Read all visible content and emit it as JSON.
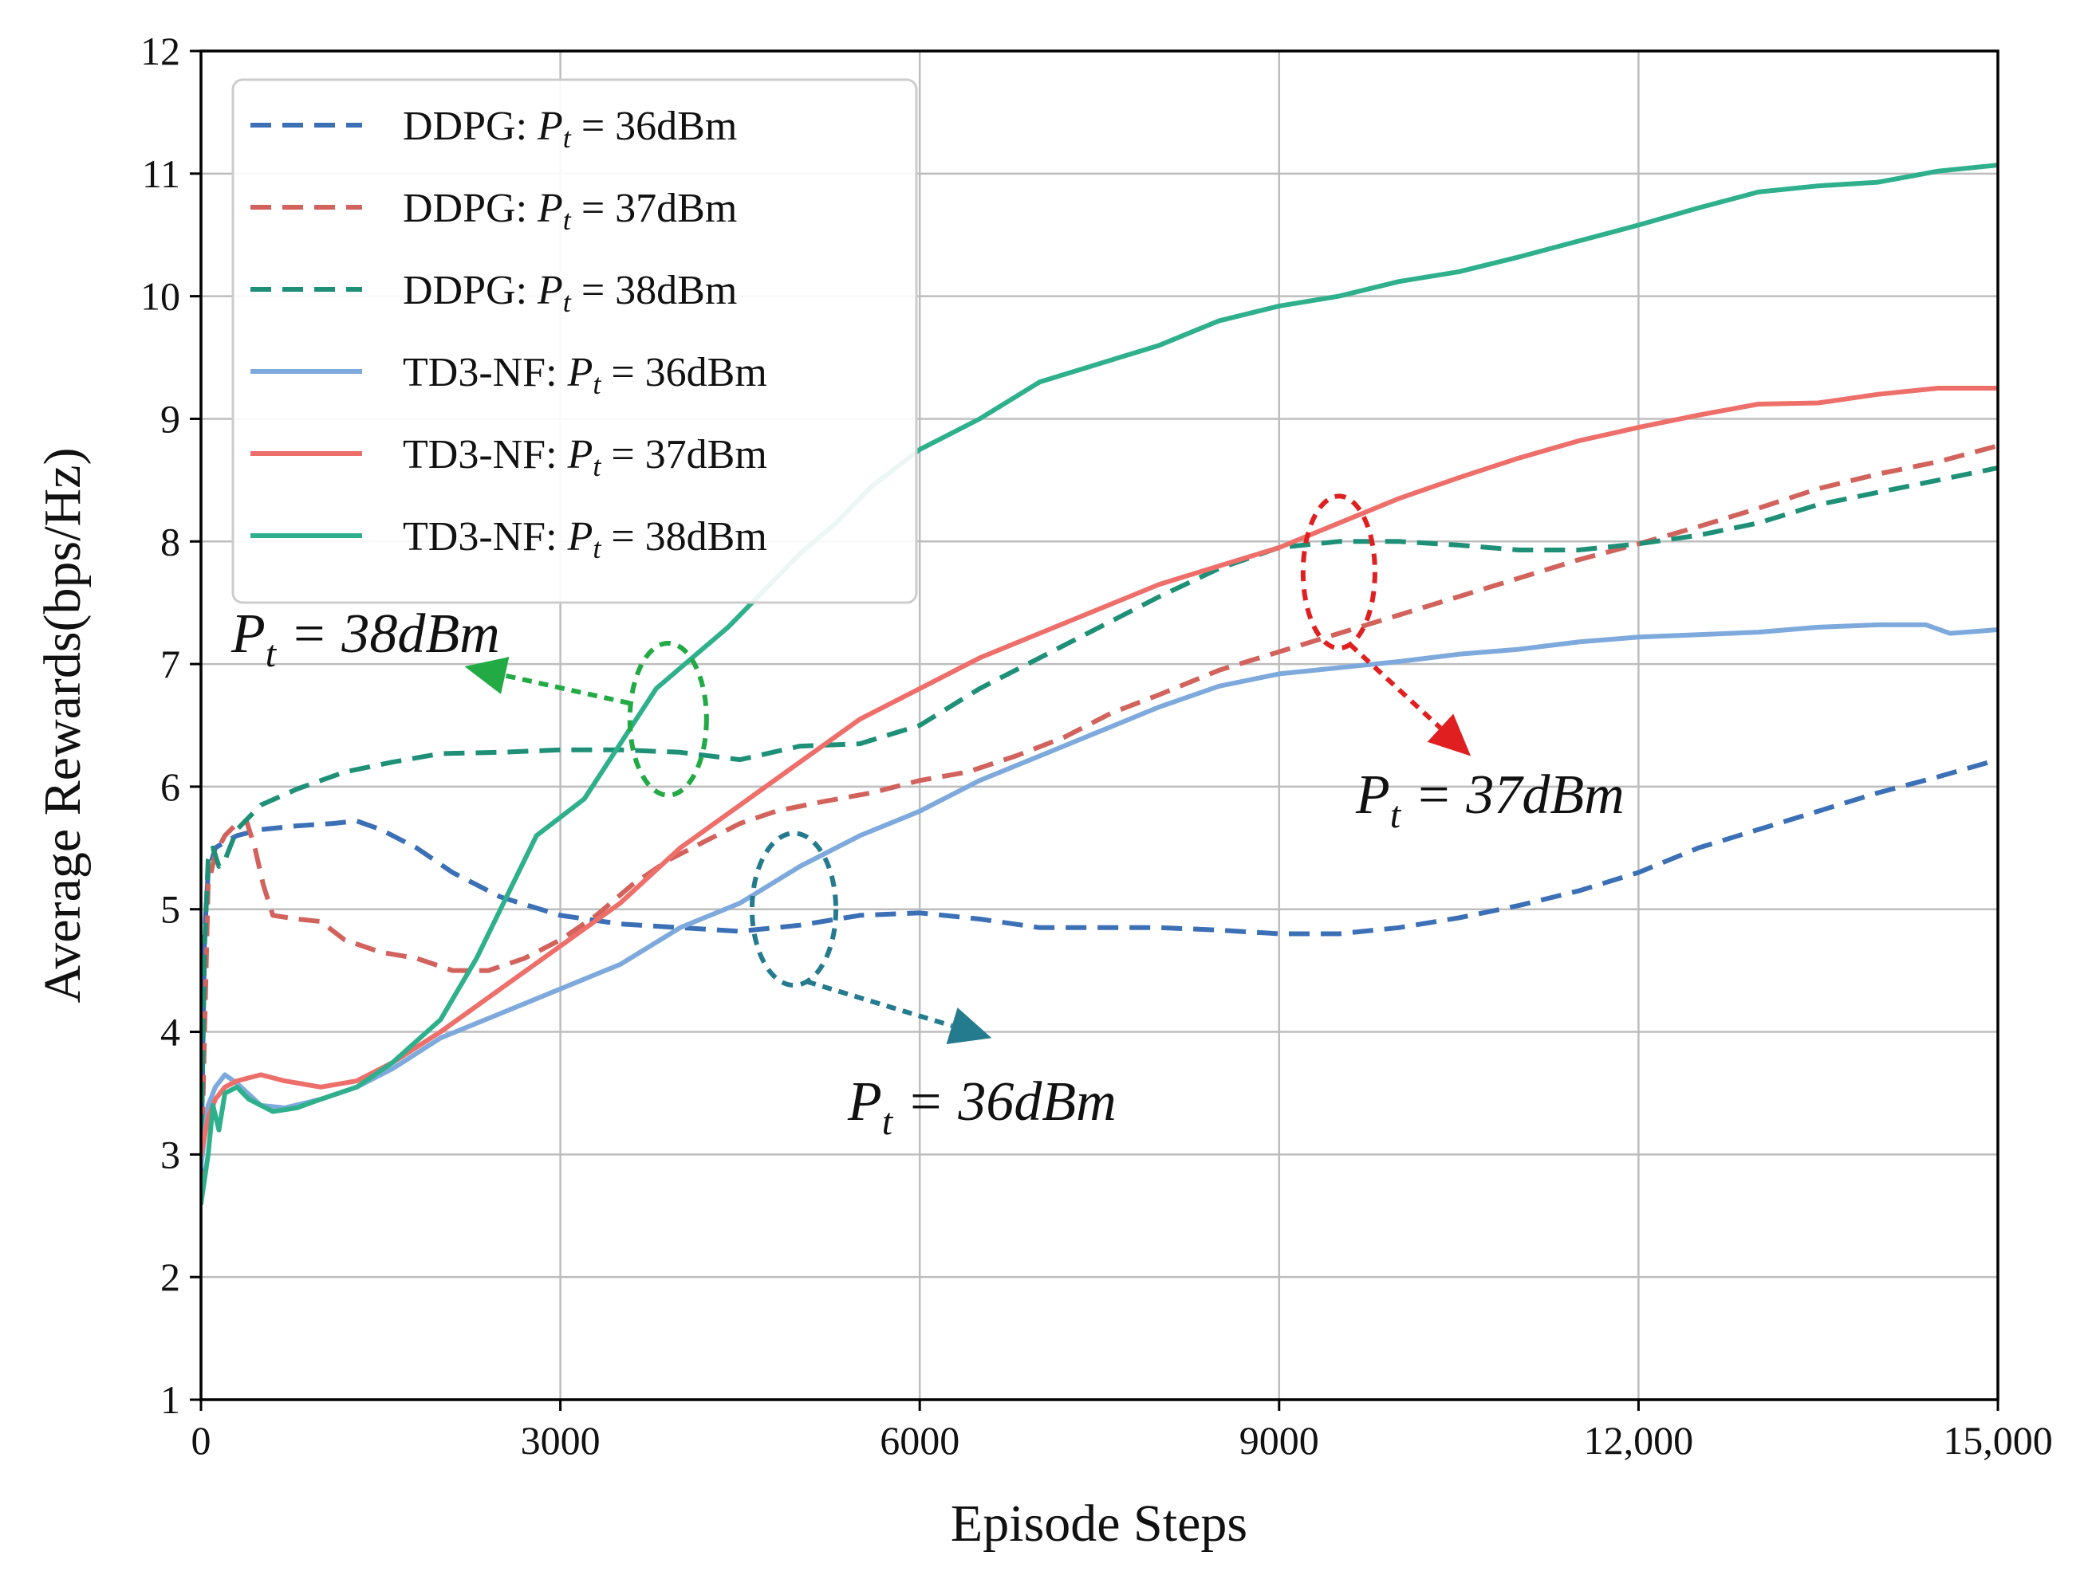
{
  "chart_data": {
    "type": "line",
    "title": "",
    "xlabel": "Episode Steps",
    "ylabel": "Average Rewards(bps/Hz)",
    "xlim": [
      0,
      15000
    ],
    "ylim": [
      1,
      12
    ],
    "grid": true,
    "legend_position": "top-left",
    "xticks": [
      {
        "value": 0,
        "label": "0"
      },
      {
        "value": 3000,
        "label": "3000"
      },
      {
        "value": 6000,
        "label": "6000"
      },
      {
        "value": 9000,
        "label": "9000"
      },
      {
        "value": 12000,
        "label": "12,000"
      },
      {
        "value": 15000,
        "label": "15,000"
      }
    ],
    "yticks": [
      {
        "value": 1,
        "label": "1"
      },
      {
        "value": 2,
        "label": "2"
      },
      {
        "value": 3,
        "label": "3"
      },
      {
        "value": 4,
        "label": "4"
      },
      {
        "value": 5,
        "label": "5"
      },
      {
        "value": 6,
        "label": "6"
      },
      {
        "value": 7,
        "label": "7"
      },
      {
        "value": 8,
        "label": "8"
      },
      {
        "value": 9,
        "label": "9"
      },
      {
        "value": 10,
        "label": "10"
      },
      {
        "value": 11,
        "label": "11"
      },
      {
        "value": 12,
        "label": "12"
      }
    ],
    "series": [
      {
        "name": "DDPG: Pt = 36dBm",
        "prefix": "DDPG:",
        "power": "36dBm",
        "style": "dashed",
        "color": "#3b6fb6",
        "points": [
          [
            0,
            2.8
          ],
          [
            30,
            4.8
          ],
          [
            60,
            5.3
          ],
          [
            120,
            5.5
          ],
          [
            200,
            5.55
          ],
          [
            300,
            5.6
          ],
          [
            500,
            5.65
          ],
          [
            800,
            5.68
          ],
          [
            1100,
            5.7
          ],
          [
            1300,
            5.72
          ],
          [
            1500,
            5.65
          ],
          [
            1800,
            5.5
          ],
          [
            2100,
            5.3
          ],
          [
            2500,
            5.1
          ],
          [
            3000,
            4.95
          ],
          [
            3500,
            4.88
          ],
          [
            4000,
            4.85
          ],
          [
            4500,
            4.82
          ],
          [
            5000,
            4.87
          ],
          [
            5500,
            4.95
          ],
          [
            6000,
            4.97
          ],
          [
            6500,
            4.92
          ],
          [
            7000,
            4.85
          ],
          [
            7500,
            4.85
          ],
          [
            8000,
            4.85
          ],
          [
            8500,
            4.83
          ],
          [
            9000,
            4.8
          ],
          [
            9500,
            4.8
          ],
          [
            10000,
            4.85
          ],
          [
            10500,
            4.93
          ],
          [
            11000,
            5.03
          ],
          [
            11500,
            5.15
          ],
          [
            12000,
            5.3
          ],
          [
            12500,
            5.5
          ],
          [
            13000,
            5.65
          ],
          [
            13500,
            5.8
          ],
          [
            14000,
            5.95
          ],
          [
            14500,
            6.08
          ],
          [
            15000,
            6.22
          ]
        ]
      },
      {
        "name": "DDPG: Pt = 37dBm",
        "prefix": "DDPG:",
        "power": "37dBm",
        "style": "dashed",
        "color": "#d2625c",
        "points": [
          [
            0,
            2.7
          ],
          [
            30,
            4.0
          ],
          [
            60,
            5.2
          ],
          [
            120,
            5.45
          ],
          [
            200,
            5.6
          ],
          [
            300,
            5.7
          ],
          [
            380,
            5.72
          ],
          [
            450,
            5.5
          ],
          [
            520,
            5.2
          ],
          [
            600,
            4.95
          ],
          [
            800,
            4.92
          ],
          [
            1000,
            4.9
          ],
          [
            1200,
            4.75
          ],
          [
            1500,
            4.65
          ],
          [
            1800,
            4.6
          ],
          [
            2100,
            4.5
          ],
          [
            2400,
            4.5
          ],
          [
            2700,
            4.6
          ],
          [
            3000,
            4.75
          ],
          [
            3300,
            4.95
          ],
          [
            3600,
            5.2
          ],
          [
            3900,
            5.4
          ],
          [
            4200,
            5.55
          ],
          [
            4500,
            5.7
          ],
          [
            4800,
            5.8
          ],
          [
            5200,
            5.88
          ],
          [
            5600,
            5.95
          ],
          [
            6000,
            6.05
          ],
          [
            6400,
            6.12
          ],
          [
            6800,
            6.25
          ],
          [
            7200,
            6.4
          ],
          [
            7600,
            6.6
          ],
          [
            8000,
            6.75
          ],
          [
            8500,
            6.95
          ],
          [
            9000,
            7.1
          ],
          [
            9500,
            7.25
          ],
          [
            10000,
            7.4
          ],
          [
            10500,
            7.55
          ],
          [
            11000,
            7.7
          ],
          [
            11500,
            7.85
          ],
          [
            12000,
            7.98
          ],
          [
            12500,
            8.12
          ],
          [
            13000,
            8.27
          ],
          [
            13500,
            8.43
          ],
          [
            14000,
            8.55
          ],
          [
            14500,
            8.65
          ],
          [
            15000,
            8.78
          ]
        ]
      },
      {
        "name": "DDPG: Pt = 38dBm",
        "prefix": "DDPG:",
        "power": "38dBm",
        "style": "dashed",
        "color": "#1e9077",
        "points": [
          [
            0,
            2.9
          ],
          [
            30,
            4.7
          ],
          [
            60,
            5.4
          ],
          [
            100,
            5.5
          ],
          [
            150,
            5.35
          ],
          [
            200,
            5.4
          ],
          [
            300,
            5.65
          ],
          [
            500,
            5.85
          ],
          [
            800,
            5.98
          ],
          [
            1200,
            6.12
          ],
          [
            1600,
            6.2
          ],
          [
            2000,
            6.27
          ],
          [
            2500,
            6.28
          ],
          [
            3000,
            6.3
          ],
          [
            3500,
            6.3
          ],
          [
            4000,
            6.28
          ],
          [
            4500,
            6.22
          ],
          [
            5000,
            6.33
          ],
          [
            5500,
            6.35
          ],
          [
            6000,
            6.5
          ],
          [
            6500,
            6.8
          ],
          [
            7000,
            7.05
          ],
          [
            7500,
            7.3
          ],
          [
            8000,
            7.55
          ],
          [
            8500,
            7.78
          ],
          [
            9000,
            7.95
          ],
          [
            9500,
            8.0
          ],
          [
            10000,
            8.0
          ],
          [
            10500,
            7.97
          ],
          [
            11000,
            7.93
          ],
          [
            11500,
            7.93
          ],
          [
            12000,
            7.98
          ],
          [
            12500,
            8.05
          ],
          [
            13000,
            8.15
          ],
          [
            13500,
            8.3
          ],
          [
            14000,
            8.4
          ],
          [
            14500,
            8.5
          ],
          [
            15000,
            8.6
          ]
        ]
      },
      {
        "name": "TD3-NF: Pt = 36dBm",
        "prefix": "TD3-NF:",
        "power": "36dBm",
        "style": "solid",
        "color": "#7ea9dc",
        "points": [
          [
            0,
            2.9
          ],
          [
            60,
            3.4
          ],
          [
            120,
            3.55
          ],
          [
            200,
            3.65
          ],
          [
            300,
            3.58
          ],
          [
            500,
            3.4
          ],
          [
            700,
            3.38
          ],
          [
            1000,
            3.45
          ],
          [
            1300,
            3.55
          ],
          [
            1600,
            3.7
          ],
          [
            2000,
            3.95
          ],
          [
            2500,
            4.15
          ],
          [
            3000,
            4.35
          ],
          [
            3500,
            4.55
          ],
          [
            4000,
            4.85
          ],
          [
            4500,
            5.05
          ],
          [
            5000,
            5.35
          ],
          [
            5500,
            5.6
          ],
          [
            6000,
            5.8
          ],
          [
            6500,
            6.05
          ],
          [
            7000,
            6.25
          ],
          [
            7500,
            6.45
          ],
          [
            8000,
            6.65
          ],
          [
            8500,
            6.82
          ],
          [
            9000,
            6.92
          ],
          [
            9500,
            6.97
          ],
          [
            10000,
            7.02
          ],
          [
            10500,
            7.08
          ],
          [
            11000,
            7.12
          ],
          [
            11500,
            7.18
          ],
          [
            12000,
            7.22
          ],
          [
            12500,
            7.24
          ],
          [
            13000,
            7.26
          ],
          [
            13500,
            7.3
          ],
          [
            14000,
            7.32
          ],
          [
            14400,
            7.32
          ],
          [
            14600,
            7.25
          ],
          [
            15000,
            7.28
          ]
        ]
      },
      {
        "name": "TD3-NF: Pt = 37dBm",
        "prefix": "TD3-NF:",
        "power": "37dBm",
        "style": "solid",
        "color": "#ee6e6a",
        "points": [
          [
            0,
            3.0
          ],
          [
            60,
            3.3
          ],
          [
            120,
            3.45
          ],
          [
            200,
            3.55
          ],
          [
            300,
            3.6
          ],
          [
            500,
            3.65
          ],
          [
            700,
            3.6
          ],
          [
            1000,
            3.55
          ],
          [
            1300,
            3.6
          ],
          [
            1600,
            3.75
          ],
          [
            2000,
            4.0
          ],
          [
            2500,
            4.35
          ],
          [
            3000,
            4.7
          ],
          [
            3500,
            5.05
          ],
          [
            4000,
            5.5
          ],
          [
            4500,
            5.85
          ],
          [
            5000,
            6.2
          ],
          [
            5500,
            6.55
          ],
          [
            6000,
            6.8
          ],
          [
            6500,
            7.05
          ],
          [
            7000,
            7.25
          ],
          [
            7500,
            7.45
          ],
          [
            8000,
            7.65
          ],
          [
            8500,
            7.8
          ],
          [
            9000,
            7.95
          ],
          [
            9500,
            8.15
          ],
          [
            10000,
            8.35
          ],
          [
            10500,
            8.52
          ],
          [
            11000,
            8.68
          ],
          [
            11500,
            8.82
          ],
          [
            12000,
            8.93
          ],
          [
            12500,
            9.03
          ],
          [
            13000,
            9.12
          ],
          [
            13500,
            9.13
          ],
          [
            14000,
            9.2
          ],
          [
            14500,
            9.25
          ],
          [
            15000,
            9.25
          ]
        ]
      },
      {
        "name": "TD3-NF: Pt = 38dBm",
        "prefix": "TD3-NF:",
        "power": "38dBm",
        "style": "solid",
        "color": "#2fb08c",
        "points": [
          [
            0,
            2.6
          ],
          [
            60,
            3.0
          ],
          [
            100,
            3.4
          ],
          [
            150,
            3.2
          ],
          [
            200,
            3.5
          ],
          [
            300,
            3.55
          ],
          [
            400,
            3.45
          ],
          [
            600,
            3.35
          ],
          [
            800,
            3.38
          ],
          [
            1000,
            3.45
          ],
          [
            1300,
            3.55
          ],
          [
            1600,
            3.75
          ],
          [
            2000,
            4.1
          ],
          [
            2300,
            4.6
          ],
          [
            2600,
            5.2
          ],
          [
            2800,
            5.6
          ],
          [
            3000,
            5.75
          ],
          [
            3200,
            5.9
          ],
          [
            3500,
            6.35
          ],
          [
            3800,
            6.8
          ],
          [
            4100,
            7.05
          ],
          [
            4400,
            7.3
          ],
          [
            4700,
            7.6
          ],
          [
            5000,
            7.9
          ],
          [
            5300,
            8.15
          ],
          [
            5600,
            8.45
          ],
          [
            6000,
            8.75
          ],
          [
            6500,
            9.0
          ],
          [
            7000,
            9.3
          ],
          [
            7500,
            9.45
          ],
          [
            8000,
            9.6
          ],
          [
            8500,
            9.8
          ],
          [
            9000,
            9.92
          ],
          [
            9500,
            10.0
          ],
          [
            10000,
            10.12
          ],
          [
            10500,
            10.2
          ],
          [
            11000,
            10.32
          ],
          [
            11500,
            10.45
          ],
          [
            12000,
            10.58
          ],
          [
            12500,
            10.72
          ],
          [
            13000,
            10.85
          ],
          [
            13500,
            10.9
          ],
          [
            14000,
            10.93
          ],
          [
            14500,
            11.02
          ],
          [
            15000,
            11.07
          ]
        ]
      }
    ],
    "annotations": [
      {
        "name": "p38",
        "base": "P",
        "sub": "t",
        "rest": " = 38dBm",
        "color": "#22aa44",
        "ellipse": {
          "x": 3900,
          "y": 6.55,
          "rx": 320,
          "ry": 0.62
        },
        "arrow_to": {
          "x": 2200,
          "y": 6.98
        }
      },
      {
        "name": "p37",
        "base": "P",
        "sub": "t",
        "rest": " = 37dBm",
        "color": "#e02020",
        "ellipse": {
          "x": 9500,
          "y": 7.75,
          "rx": 300,
          "ry": 0.62
        },
        "arrow_to": {
          "x": 10600,
          "y": 6.25
        }
      },
      {
        "name": "p36",
        "base": "P",
        "sub": "t",
        "rest": " = 36dBm",
        "color": "#257b8e",
        "ellipse": {
          "x": 4950,
          "y": 5.0,
          "rx": 350,
          "ry": 0.62
        },
        "arrow_to": {
          "x": 6600,
          "y": 3.95
        }
      }
    ]
  }
}
